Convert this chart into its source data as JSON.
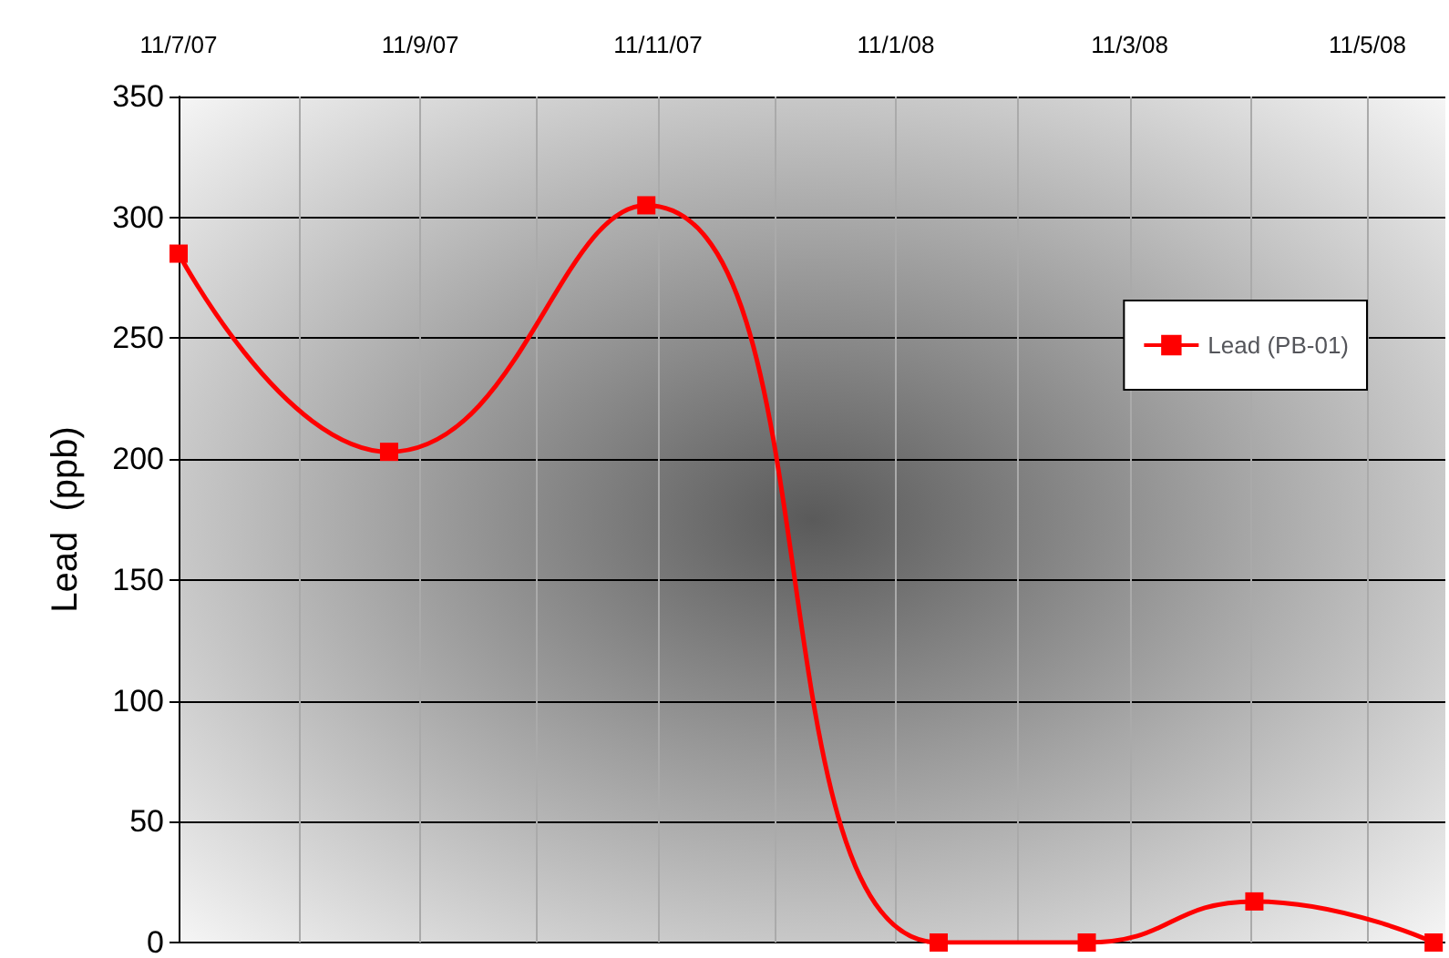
{
  "chart_data": {
    "type": "line",
    "ylabel": "Lead  (ppb)",
    "x": [
      "2007-07-11",
      "2007-09-03",
      "2007-11-08",
      "2008-01-22",
      "2008-02-29",
      "2008-04-12",
      "2008-05-28"
    ],
    "series": [
      {
        "name": "Lead (PB-01)",
        "color": "#ff0000",
        "values": [
          285,
          203,
          305,
          0,
          0,
          17,
          0
        ]
      }
    ],
    "xlim": [
      "2007-07-11",
      "2008-05-31"
    ],
    "xticks": [
      {
        "value": "2007-07-11",
        "label": "11/7/07"
      },
      {
        "value": "2007-08-11",
        "label": null
      },
      {
        "value": "2007-09-11",
        "label": "11/9/07"
      },
      {
        "value": "2007-10-11",
        "label": null
      },
      {
        "value": "2007-11-11",
        "label": "11/11/07"
      },
      {
        "value": "2007-12-11",
        "label": null
      },
      {
        "value": "2008-01-11",
        "label": "11/1/08"
      },
      {
        "value": "2008-02-11",
        "label": null
      },
      {
        "value": "2008-03-11",
        "label": "11/3/08"
      },
      {
        "value": "2008-04-11",
        "label": null
      },
      {
        "value": "2008-05-11",
        "label": "11/5/08"
      }
    ],
    "ylim": [
      0,
      350
    ],
    "yticks": [
      0,
      50,
      100,
      150,
      200,
      250,
      300,
      350
    ],
    "grid": true,
    "legend": "right",
    "marker": "square",
    "line_style": "solid"
  }
}
